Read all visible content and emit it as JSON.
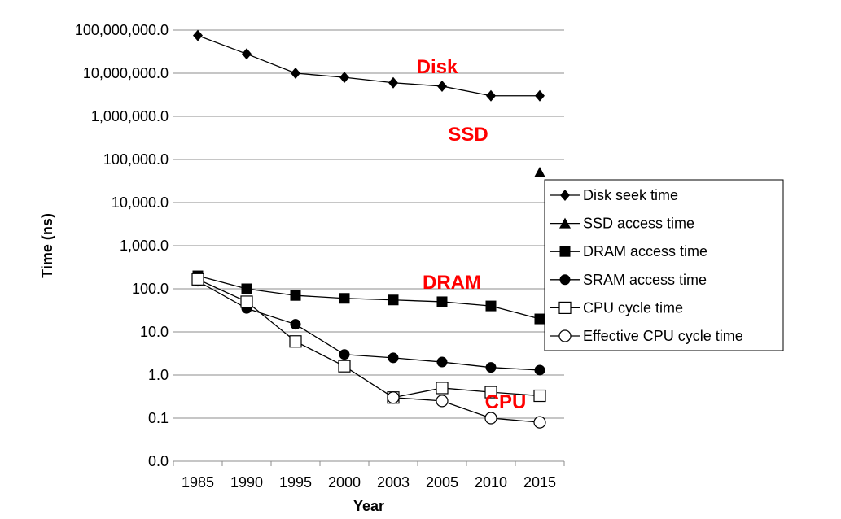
{
  "chart_data": {
    "type": "line",
    "title": "",
    "xlabel": "Year",
    "ylabel": "Time (ns)",
    "y_scale": "log",
    "ylim": [
      0.0,
      100000000.0
    ],
    "y_ticks": [
      "0.0",
      "0.1",
      "1.0",
      "10.0",
      "100.0",
      "1,000.0",
      "10,000.0",
      "100,000.0",
      "1,000,000.0",
      "10,000,000.0",
      "100,000,000.0"
    ],
    "categories": [
      "1985",
      "1990",
      "1995",
      "2000",
      "2003",
      "2005",
      "2010",
      "2015"
    ],
    "grid": "horizontal",
    "legend_position": "right",
    "series": [
      {
        "name": "Disk seek time",
        "marker": "diamond",
        "values": [
          75000000,
          28000000,
          10000000,
          8000000,
          6000000,
          5000000,
          3000000,
          3000000
        ]
      },
      {
        "name": "SSD access time",
        "marker": "triangle",
        "values": [
          null,
          null,
          null,
          null,
          null,
          null,
          null,
          50000
        ]
      },
      {
        "name": "DRAM access time",
        "marker": "square-filled",
        "values": [
          200,
          100,
          70,
          60,
          55,
          50,
          40,
          20
        ]
      },
      {
        "name": "SRAM access time",
        "marker": "circle-filled",
        "values": [
          150,
          35,
          15,
          3,
          2.5,
          2.0,
          1.5,
          1.3
        ]
      },
      {
        "name": "CPU cycle time",
        "marker": "square-open",
        "values": [
          166,
          50,
          6,
          1.6,
          0.3,
          0.5,
          0.4,
          0.33
        ]
      },
      {
        "name": "Effective CPU cycle time",
        "marker": "circle-open",
        "values": [
          null,
          null,
          null,
          null,
          0.3,
          0.25,
          0.1,
          0.08
        ]
      }
    ],
    "annotations": [
      {
        "text": "Disk",
        "color": "#ff0000"
      },
      {
        "text": "SSD",
        "color": "#ff0000"
      },
      {
        "text": "DRAM",
        "color": "#ff0000"
      },
      {
        "text": "CPU",
        "color": "#ff0000"
      }
    ]
  }
}
